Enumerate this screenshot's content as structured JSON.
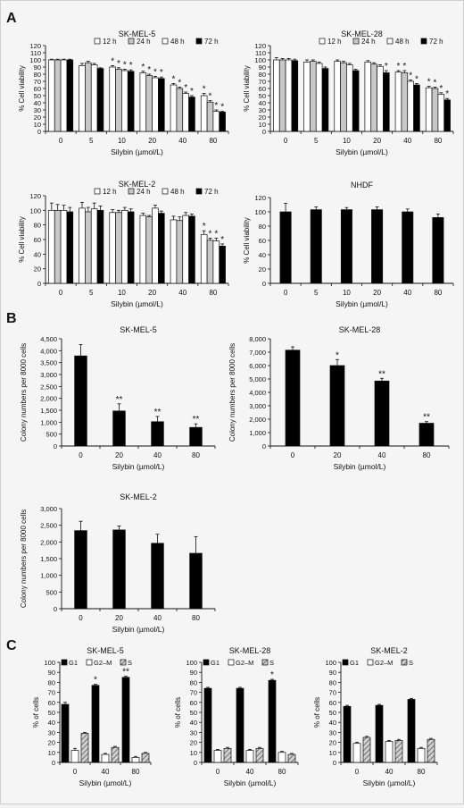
{
  "figure": {
    "panel_labels": {
      "A": "A",
      "B": "B",
      "C": "C"
    },
    "legend_tp": [
      "12 h",
      "24 h",
      "48 h",
      "72 h"
    ],
    "legend_cycle": [
      "G1",
      "G2–M",
      "S"
    ],
    "colors": {
      "s12": "#ffffff",
      "s24": "#c8c8c8",
      "s48": "#ffffff",
      "s72": "#000000",
      "g1": "#000000",
      "g2m": "#ffffff",
      "s": "#9a9a9a",
      "axis": "#111111"
    }
  },
  "chart_data": [
    {
      "id": "A1",
      "type": "bar",
      "title": "SK-MEL-5",
      "xlabel": "Silybin (µmol/L)",
      "ylabel": "% Cell viability",
      "categories": [
        "0",
        "5",
        "10",
        "20",
        "40",
        "80"
      ],
      "ylim": [
        0,
        120
      ],
      "yticks": [
        0,
        10,
        20,
        30,
        40,
        50,
        60,
        70,
        80,
        90,
        100,
        110,
        120
      ],
      "series": [
        {
          "name": "12 h",
          "values": [
            100,
            92,
            90,
            82,
            65,
            50
          ],
          "err": [
            1,
            3,
            2,
            2,
            2,
            3
          ],
          "stars": [
            "",
            "",
            "*",
            "*",
            "*",
            "*"
          ]
        },
        {
          "name": "24 h",
          "values": [
            100,
            96,
            87,
            78,
            60,
            41
          ],
          "err": [
            1,
            2,
            2,
            2,
            2,
            2
          ],
          "stars": [
            "",
            "",
            "*",
            "*",
            "*",
            "*"
          ]
        },
        {
          "name": "48 h",
          "values": [
            100,
            93,
            85,
            75,
            53,
            28
          ],
          "err": [
            1,
            2,
            2,
            2,
            2,
            2
          ],
          "stars": [
            "",
            "",
            "*",
            "*",
            "*",
            "*"
          ]
        },
        {
          "name": "72 h",
          "values": [
            100,
            88,
            84,
            74,
            48,
            27
          ],
          "err": [
            1,
            1,
            2,
            2,
            2,
            1
          ],
          "stars": [
            "",
            "",
            "*",
            "*",
            "*",
            "*"
          ]
        }
      ]
    },
    {
      "id": "A2",
      "type": "bar",
      "title": "SK-MEL-28",
      "xlabel": "Silybin (µmol/L)",
      "ylabel": "% Cell viability",
      "categories": [
        "0",
        "5",
        "10",
        "20",
        "40",
        "80"
      ],
      "ylim": [
        0,
        120
      ],
      "yticks": [
        0,
        10,
        20,
        30,
        40,
        50,
        60,
        70,
        80,
        90,
        100,
        110,
        120
      ],
      "series": [
        {
          "name": "12 h",
          "values": [
            100,
            97,
            98,
            97,
            83,
            61
          ],
          "err": [
            3,
            3,
            2,
            2,
            2,
            2
          ],
          "stars": [
            "",
            "",
            "",
            "",
            "*",
            "*"
          ]
        },
        {
          "name": "24 h",
          "values": [
            100,
            98,
            96,
            94,
            82,
            60
          ],
          "err": [
            2,
            2,
            2,
            2,
            3,
            2
          ],
          "stars": [
            "",
            "",
            "",
            "",
            "*",
            "*"
          ]
        },
        {
          "name": "48 h",
          "values": [
            100,
            95,
            93,
            91,
            70,
            52
          ],
          "err": [
            2,
            2,
            2,
            2,
            2,
            2
          ],
          "stars": [
            "",
            "",
            "",
            "",
            "*",
            "*"
          ]
        },
        {
          "name": "72 h",
          "values": [
            99,
            88,
            85,
            82,
            65,
            44
          ],
          "err": [
            2,
            2,
            2,
            3,
            2,
            2
          ],
          "stars": [
            "",
            "",
            "",
            "*",
            "*",
            "*"
          ]
        }
      ]
    },
    {
      "id": "A3",
      "type": "bar",
      "title": "SK-MEL-2",
      "xlabel": "Silybin (µmol/L)",
      "ylabel": "% Cell viability",
      "categories": [
        "0",
        "5",
        "10",
        "20",
        "40",
        "80"
      ],
      "ylim": [
        0,
        120
      ],
      "yticks": [
        0,
        20,
        40,
        60,
        80,
        100,
        120
      ],
      "series": [
        {
          "name": "12 h",
          "values": [
            100,
            103,
            97,
            93,
            87,
            67
          ],
          "err": [
            10,
            8,
            4,
            3,
            5,
            5
          ],
          "stars": [
            "",
            "",
            "",
            "",
            "",
            "*"
          ]
        },
        {
          "name": "24 h",
          "values": [
            100,
            98,
            97,
            91,
            86,
            59
          ],
          "err": [
            8,
            6,
            3,
            2,
            5,
            3
          ],
          "stars": [
            "",
            "",
            "",
            "",
            "",
            "*"
          ]
        },
        {
          "name": "48 h",
          "values": [
            100,
            102,
            100,
            103,
            93,
            58
          ],
          "err": [
            7,
            8,
            4,
            4,
            4,
            4
          ],
          "stars": [
            "",
            "",
            "",
            "",
            "",
            "*"
          ]
        },
        {
          "name": "72 h",
          "values": [
            98,
            100,
            98,
            96,
            92,
            51
          ],
          "err": [
            6,
            6,
            4,
            3,
            3,
            3
          ],
          "stars": [
            "",
            "",
            "",
            "",
            "",
            "*"
          ]
        }
      ]
    },
    {
      "id": "A4",
      "type": "bar",
      "title": "NHDF",
      "xlabel": "Silybin (µmol/L)",
      "ylabel": "% Cell viability",
      "categories": [
        "0",
        "5",
        "10",
        "20",
        "40",
        "80"
      ],
      "ylim": [
        0,
        120
      ],
      "yticks": [
        0,
        20,
        40,
        60,
        80,
        100,
        120
      ],
      "series": [
        {
          "name": "",
          "values": [
            100,
            103,
            103,
            103,
            100,
            92
          ],
          "err": [
            12,
            4,
            3,
            4,
            4,
            5
          ],
          "stars": [
            "",
            "",
            "",
            "",
            "",
            ""
          ]
        }
      ]
    },
    {
      "id": "B1",
      "type": "bar",
      "title": "SK-MEL-5",
      "xlabel": "Silybin (µmol/L)",
      "ylabel": "Colony numbers per 8000 cells",
      "categories": [
        "0",
        "20",
        "40",
        "80"
      ],
      "ylim": [
        0,
        4500
      ],
      "yticks": [
        0,
        500,
        1000,
        1500,
        2000,
        2500,
        3000,
        3500,
        4000,
        4500
      ],
      "ytick_labels": [
        "0",
        "500",
        "1,000",
        "1,500",
        "2,000",
        "2,500",
        "3,000",
        "3,500",
        "4,000",
        "4,500"
      ],
      "series": [
        {
          "name": "",
          "values": [
            3780,
            1470,
            1020,
            780
          ],
          "err": [
            480,
            300,
            220,
            150
          ],
          "stars": [
            "",
            "**",
            "**",
            "**"
          ]
        }
      ]
    },
    {
      "id": "B2",
      "type": "bar",
      "title": "SK-MEL-28",
      "xlabel": "Silybin (µmol/L)",
      "ylabel": "Colony numbers per 8000 cells",
      "categories": [
        "0",
        "20",
        "40",
        "80"
      ],
      "ylim": [
        0,
        8000
      ],
      "yticks": [
        0,
        1000,
        2000,
        3000,
        4000,
        5000,
        6000,
        7000,
        8000
      ],
      "ytick_labels": [
        "0",
        "1,000",
        "2,000",
        "3,000",
        "4,000",
        "5,000",
        "6,000",
        "7,000",
        "8,000"
      ],
      "series": [
        {
          "name": "",
          "values": [
            7150,
            6000,
            4850,
            1700
          ],
          "err": [
            250,
            450,
            200,
            120
          ],
          "stars": [
            "",
            "*",
            "**",
            "**"
          ]
        }
      ]
    },
    {
      "id": "B3",
      "type": "bar",
      "title": "SK-MEL-2",
      "xlabel": "Silybin (µmol/L)",
      "ylabel": "Colony numbers per 8000 cells",
      "categories": [
        "0",
        "20",
        "40",
        "80"
      ],
      "ylim": [
        0,
        3000
      ],
      "yticks": [
        0,
        500,
        1000,
        1500,
        2000,
        2500,
        3000
      ],
      "ytick_labels": [
        "0",
        "500",
        "1,000",
        "1,500",
        "2,000",
        "2,500",
        "3,000"
      ],
      "series": [
        {
          "name": "",
          "values": [
            2340,
            2360,
            1960,
            1660
          ],
          "err": [
            280,
            120,
            270,
            500
          ],
          "stars": [
            "",
            "",
            "",
            ""
          ]
        }
      ]
    },
    {
      "id": "C1",
      "type": "bar",
      "title": "SK-MEL-5",
      "xlabel": "Silybin (µmol/L)",
      "ylabel": "% of cells",
      "categories": [
        "0",
        "40",
        "80"
      ],
      "ylim": [
        0,
        100
      ],
      "yticks": [
        0,
        10,
        20,
        30,
        40,
        50,
        60,
        70,
        80,
        90,
        100
      ],
      "series": [
        {
          "name": "G1",
          "values": [
            58,
            77,
            85
          ],
          "err": [
            2,
            1,
            1
          ],
          "stars": [
            "",
            "*",
            "**"
          ]
        },
        {
          "name": "G2–M",
          "values": [
            12,
            8,
            5
          ],
          "err": [
            2,
            1,
            1
          ],
          "stars": [
            "",
            "",
            ""
          ]
        },
        {
          "name": "S",
          "values": [
            29,
            15,
            9
          ],
          "err": [
            1,
            1,
            1
          ],
          "stars": [
            "",
            "",
            ""
          ]
        }
      ]
    },
    {
      "id": "C2",
      "type": "bar",
      "title": "SK-MEL-28",
      "xlabel": "Silybin (µmol/L)",
      "ylabel": "% of cells",
      "categories": [
        "0",
        "40",
        "80"
      ],
      "ylim": [
        0,
        100
      ],
      "yticks": [
        0,
        10,
        20,
        30,
        40,
        50,
        60,
        70,
        80,
        90,
        100
      ],
      "series": [
        {
          "name": "G1",
          "values": [
            74,
            74,
            82
          ],
          "err": [
            1,
            1,
            1
          ],
          "stars": [
            "",
            "",
            "*"
          ]
        },
        {
          "name": "G2–M",
          "values": [
            12,
            12,
            10
          ],
          "err": [
            1,
            1,
            1
          ],
          "stars": [
            "",
            "",
            ""
          ]
        },
        {
          "name": "S",
          "values": [
            14,
            14,
            8
          ],
          "err": [
            1,
            1,
            1
          ],
          "stars": [
            "",
            "",
            ""
          ]
        }
      ]
    },
    {
      "id": "C3",
      "type": "bar",
      "title": "SK-MEL-2",
      "xlabel": "Silybin (µmol/L)",
      "ylabel": "% of cells",
      "categories": [
        "0",
        "40",
        "80"
      ],
      "ylim": [
        0,
        100
      ],
      "yticks": [
        0,
        10,
        20,
        30,
        40,
        50,
        60,
        70,
        80,
        90,
        100
      ],
      "series": [
        {
          "name": "G1",
          "values": [
            56,
            57,
            63
          ],
          "err": [
            1,
            1,
            1
          ],
          "stars": [
            "",
            "",
            ""
          ]
        },
        {
          "name": "G2–M",
          "values": [
            19,
            21,
            14
          ],
          "err": [
            1,
            1,
            1
          ],
          "stars": [
            "",
            "",
            ""
          ]
        },
        {
          "name": "S",
          "values": [
            25,
            22,
            23
          ],
          "err": [
            1,
            1,
            1
          ],
          "stars": [
            "",
            "",
            ""
          ]
        }
      ]
    }
  ]
}
